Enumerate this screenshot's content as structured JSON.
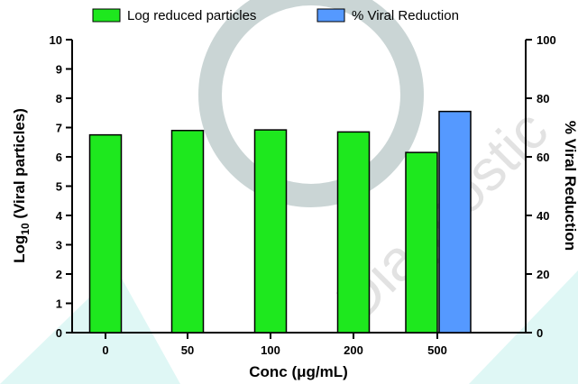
{
  "chart_data": {
    "type": "bar",
    "categories": [
      "0",
      "50",
      "100",
      "200",
      "500"
    ],
    "series": [
      {
        "name": "Log reduced particles",
        "color": "#1ee81e",
        "axis": "left",
        "values": [
          6.75,
          6.9,
          6.92,
          6.85,
          6.15
        ]
      },
      {
        "name": "% Viral Reduction",
        "color": "#5599ff",
        "axis": "right",
        "values": [
          null,
          null,
          null,
          null,
          75.5
        ]
      }
    ],
    "xlabel": "Conc (μg/mL)",
    "ylabel_left": {
      "main": "Log",
      "sub": "10",
      "rest": " (Viral particles)"
    },
    "ylabel_right": "% Viral Reduction",
    "ylim_left": [
      0,
      10
    ],
    "yticks_left": [
      "0",
      "1",
      "2",
      "3",
      "4",
      "5",
      "6",
      "7",
      "8",
      "9",
      "10"
    ],
    "ylim_right": [
      0,
      100
    ],
    "yticks_right": [
      "0",
      "20",
      "40",
      "60",
      "80",
      "100"
    ],
    "legend_position": "top",
    "grid": false
  },
  "watermark": {
    "text": "Diagnostic",
    "color": "#cccccc"
  }
}
